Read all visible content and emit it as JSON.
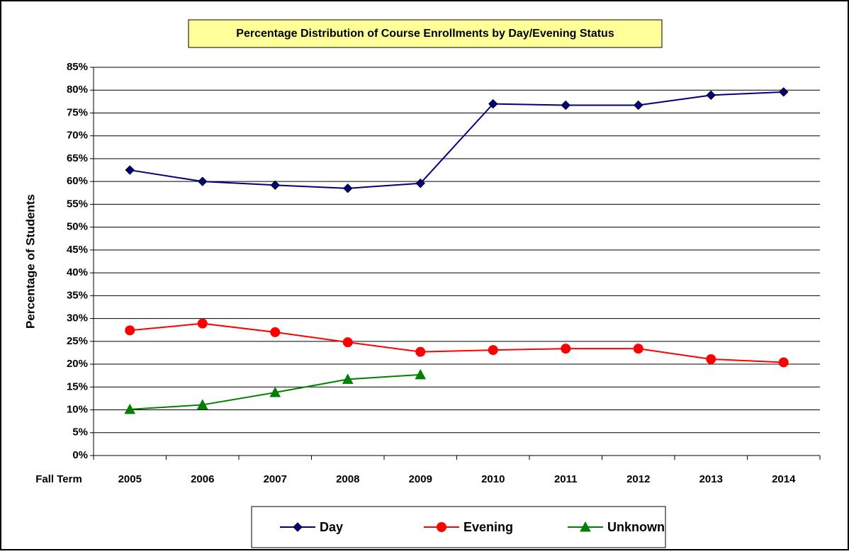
{
  "chart_data": {
    "type": "line",
    "title": "Percentage Distribution of Course Enrollments by Day/Evening Status",
    "ylabel": "Percentage of Students",
    "xlabel": "Fall Term",
    "categories": [
      "2005",
      "2006",
      "2007",
      "2008",
      "2009",
      "2010",
      "2011",
      "2012",
      "2013",
      "2014"
    ],
    "series": [
      {
        "name": "Day",
        "color": "#000080",
        "marker": "diamond",
        "values": [
          62.5,
          60,
          59.2,
          58.5,
          59.6,
          77,
          76.7,
          76.7,
          78.9,
          79.6
        ]
      },
      {
        "name": "Evening",
        "color": "#ff0000",
        "marker": "circle",
        "values": [
          27.4,
          28.9,
          27,
          24.8,
          22.7,
          23.1,
          23.4,
          23.4,
          21.1,
          20.4
        ]
      },
      {
        "name": "Unknown",
        "color": "#008000",
        "marker": "triangle",
        "values": [
          10.1,
          11.1,
          13.8,
          16.7,
          17.7,
          null,
          null,
          null,
          null,
          null
        ]
      }
    ],
    "ylim": [
      0,
      85
    ],
    "yticks": [
      {
        "value": 0,
        "label": "0%"
      },
      {
        "value": 5,
        "label": "5%"
      },
      {
        "value": 10,
        "label": "10%"
      },
      {
        "value": 15,
        "label": "15%"
      },
      {
        "value": 20,
        "label": "20%"
      },
      {
        "value": 25,
        "label": "25%"
      },
      {
        "value": 30,
        "label": "30%"
      },
      {
        "value": 35,
        "label": "35%"
      },
      {
        "value": 40,
        "label": "40%"
      },
      {
        "value": 45,
        "label": "45%"
      },
      {
        "value": 50,
        "label": "50%"
      },
      {
        "value": 55,
        "label": "55%"
      },
      {
        "value": 60,
        "label": "60%"
      },
      {
        "value": 65,
        "label": "65%"
      },
      {
        "value": 70,
        "label": "70%"
      },
      {
        "value": 75,
        "label": "75%"
      },
      {
        "value": 80,
        "label": "80%"
      },
      {
        "value": 85,
        "label": "85%"
      }
    ],
    "grid": true
  }
}
